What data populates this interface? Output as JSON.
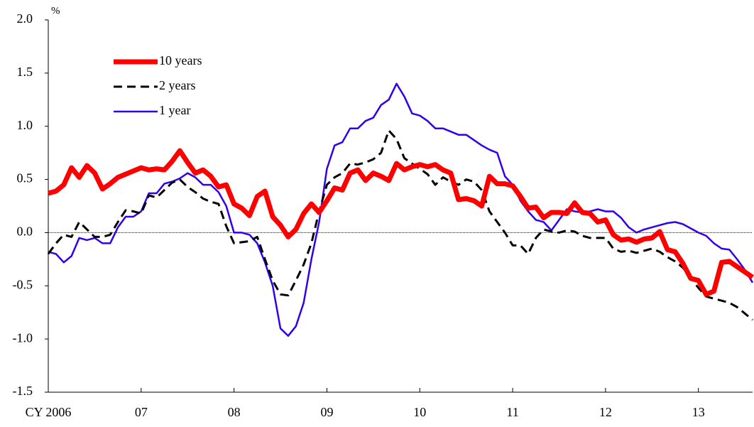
{
  "chart_data": {
    "type": "line",
    "y_unit": "%",
    "categories": [
      "CY 2006",
      null,
      null,
      null,
      null,
      null,
      null,
      null,
      null,
      null,
      null,
      null,
      "07",
      null,
      null,
      null,
      null,
      null,
      null,
      null,
      null,
      null,
      null,
      null,
      "08",
      null,
      null,
      null,
      null,
      null,
      null,
      null,
      null,
      null,
      null,
      null,
      "09",
      null,
      null,
      null,
      null,
      null,
      null,
      null,
      null,
      null,
      null,
      null,
      "10",
      null,
      null,
      null,
      null,
      null,
      null,
      null,
      null,
      null,
      null,
      null,
      "11",
      null,
      null,
      null,
      null,
      null,
      null,
      null,
      null,
      null,
      null,
      null,
      "12",
      null,
      null,
      null,
      null,
      null,
      null,
      null,
      null,
      null,
      null,
      null,
      "13",
      null,
      null,
      null,
      null,
      null,
      null,
      null
    ],
    "series": [
      {
        "name": "10 years",
        "color": "#ff0000",
        "width": 7,
        "dashed": false,
        "values": [
          0.37,
          0.39,
          0.45,
          0.61,
          0.52,
          0.63,
          0.56,
          0.41,
          0.46,
          0.52,
          0.55,
          0.58,
          0.61,
          0.59,
          0.6,
          0.59,
          0.67,
          0.77,
          0.66,
          0.56,
          0.59,
          0.53,
          0.43,
          0.45,
          0.27,
          0.23,
          0.16,
          0.34,
          0.39,
          0.15,
          0.07,
          -0.04,
          0.03,
          0.18,
          0.27,
          0.19,
          0.3,
          0.42,
          0.4,
          0.56,
          0.59,
          0.49,
          0.56,
          0.53,
          0.49,
          0.65,
          0.59,
          0.62,
          0.64,
          0.62,
          0.64,
          0.59,
          0.56,
          0.31,
          0.32,
          0.3,
          0.25,
          0.53,
          0.46,
          0.46,
          0.44,
          0.34,
          0.23,
          0.24,
          0.14,
          0.19,
          0.19,
          0.18,
          0.28,
          0.19,
          0.18,
          0.1,
          0.12,
          -0.02,
          -0.07,
          -0.06,
          -0.09,
          -0.06,
          -0.05,
          0.01,
          -0.16,
          -0.18,
          -0.29,
          -0.43,
          -0.45,
          -0.58,
          -0.55,
          -0.28,
          -0.27,
          -0.32,
          -0.37,
          -0.42
        ]
      },
      {
        "name": "2 years",
        "color": "#000000",
        "width": 3,
        "dashed": true,
        "values": [
          -0.2,
          -0.1,
          -0.02,
          -0.04,
          0.1,
          0.03,
          -0.04,
          -0.04,
          -0.02,
          0.1,
          0.21,
          0.2,
          0.18,
          0.35,
          0.33,
          0.4,
          0.47,
          0.5,
          0.43,
          0.38,
          0.32,
          0.29,
          0.27,
          0.06,
          -0.1,
          -0.09,
          -0.08,
          -0.04,
          -0.25,
          -0.45,
          -0.58,
          -0.59,
          -0.45,
          -0.3,
          -0.1,
          0.2,
          0.45,
          0.52,
          0.56,
          0.65,
          0.64,
          0.66,
          0.69,
          0.75,
          0.96,
          0.88,
          0.7,
          0.65,
          0.6,
          0.55,
          0.45,
          0.52,
          0.48,
          0.45,
          0.5,
          0.48,
          0.4,
          0.2,
          0.1,
          0.0,
          -0.12,
          -0.12,
          -0.2,
          -0.05,
          0.03,
          0.01,
          0.0,
          0.02,
          0.01,
          -0.03,
          -0.05,
          -0.05,
          -0.05,
          -0.15,
          -0.18,
          -0.17,
          -0.19,
          -0.17,
          -0.15,
          -0.18,
          -0.23,
          -0.27,
          -0.33,
          -0.42,
          -0.52,
          -0.6,
          -0.62,
          -0.64,
          -0.66,
          -0.7,
          -0.76,
          -0.82
        ]
      },
      {
        "name": "1 year",
        "color": "#3300ee",
        "width": 2.5,
        "dashed": false,
        "values": [
          -0.18,
          -0.2,
          -0.28,
          -0.22,
          -0.05,
          -0.07,
          -0.05,
          -0.1,
          -0.1,
          0.05,
          0.15,
          0.15,
          0.2,
          0.37,
          0.37,
          0.46,
          0.48,
          0.51,
          0.56,
          0.52,
          0.45,
          0.45,
          0.38,
          0.25,
          0.0,
          0.0,
          -0.02,
          -0.1,
          -0.28,
          -0.5,
          -0.9,
          -0.97,
          -0.88,
          -0.66,
          -0.25,
          0.1,
          0.6,
          0.82,
          0.85,
          0.98,
          0.98,
          1.05,
          1.08,
          1.2,
          1.25,
          1.4,
          1.28,
          1.12,
          1.1,
          1.05,
          0.98,
          0.98,
          0.95,
          0.92,
          0.92,
          0.87,
          0.82,
          0.78,
          0.75,
          0.53,
          0.45,
          0.3,
          0.2,
          0.12,
          0.1,
          0.02,
          0.12,
          0.22,
          0.2,
          0.19,
          0.2,
          0.22,
          0.2,
          0.2,
          0.14,
          0.05,
          0.0,
          0.03,
          0.05,
          0.07,
          0.09,
          0.1,
          0.08,
          0.04,
          0.0,
          -0.03,
          -0.1,
          -0.15,
          -0.16,
          -0.25,
          -0.35,
          -0.47
        ]
      }
    ],
    "ylim": [
      -1.5,
      2.0
    ],
    "yticks": [
      {
        "value": -1.5,
        "label": "-1.5"
      },
      {
        "value": -1,
        "label": "-1.0"
      },
      {
        "value": -0.5,
        "label": "-0.5"
      },
      {
        "value": 0,
        "label": "0.0"
      },
      {
        "value": 0.5,
        "label": "0.5"
      },
      {
        "value": 1,
        "label": "1.0"
      },
      {
        "value": 1.5,
        "label": "1.5"
      },
      {
        "value": 2,
        "label": "2.0"
      }
    ],
    "zero_line": true,
    "grid": false,
    "legend": "upper left"
  }
}
